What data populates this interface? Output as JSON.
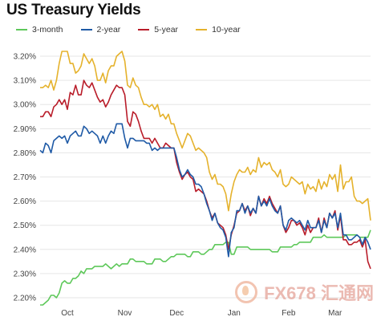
{
  "chart_data": {
    "type": "line",
    "title": "US Treasury Yields",
    "xlabel": "",
    "ylabel": "",
    "ylim": [
      2.17,
      3.26
    ],
    "yticks": [
      2.2,
      2.3,
      2.4,
      2.5,
      2.6,
      2.7,
      2.8,
      2.9,
      3.0,
      3.1,
      3.2
    ],
    "ytick_labels": [
      "2.20%",
      "2.30%",
      "2.40%",
      "2.50%",
      "2.60%",
      "2.70%",
      "2.80%",
      "2.90%",
      "3.00%",
      "3.10%",
      "3.20%"
    ],
    "month_labels": [
      "Oct",
      "Nov",
      "Dec",
      "Jan",
      "Feb",
      "Mar"
    ],
    "month_positions": [
      10,
      31,
      50,
      71,
      91,
      108
    ],
    "x_count": 122,
    "grid": true,
    "legend_position": "top",
    "series": [
      {
        "name": "3-month",
        "color": "#5ec85a",
        "values": [
          2.17,
          2.17,
          2.18,
          2.19,
          2.21,
          2.21,
          2.2,
          2.22,
          2.26,
          2.27,
          2.26,
          2.26,
          2.28,
          2.28,
          2.29,
          2.31,
          2.3,
          2.32,
          2.32,
          2.32,
          2.33,
          2.33,
          2.33,
          2.33,
          2.34,
          2.33,
          2.32,
          2.33,
          2.34,
          2.33,
          2.34,
          2.34,
          2.34,
          2.36,
          2.36,
          2.35,
          2.35,
          2.35,
          2.35,
          2.34,
          2.34,
          2.34,
          2.36,
          2.36,
          2.36,
          2.35,
          2.35,
          2.36,
          2.37,
          2.37,
          2.38,
          2.38,
          2.38,
          2.38,
          2.37,
          2.37,
          2.39,
          2.39,
          2.39,
          2.38,
          2.38,
          2.39,
          2.4,
          2.4,
          2.42,
          2.42,
          2.42,
          2.42,
          2.43,
          2.43,
          2.38,
          2.38,
          2.41,
          2.41,
          2.41,
          2.41,
          2.41,
          2.4,
          2.4,
          2.4,
          2.4,
          2.4,
          2.4,
          2.4,
          2.4,
          2.39,
          2.39,
          2.39,
          2.41,
          2.41,
          2.41,
          2.41,
          2.41,
          2.42,
          2.42,
          2.43,
          2.43,
          2.43,
          2.43,
          2.43,
          2.45,
          2.45,
          2.45,
          2.45,
          2.46,
          2.45,
          2.45,
          2.45,
          2.45,
          2.45,
          2.45,
          2.45,
          2.46,
          2.46,
          2.46,
          2.46,
          2.46,
          2.45,
          2.45,
          2.45,
          2.45,
          2.48
        ]
      },
      {
        "name": "2-year",
        "color": "#1f5aa6",
        "values": [
          2.81,
          2.8,
          2.84,
          2.83,
          2.8,
          2.85,
          2.86,
          2.87,
          2.86,
          2.87,
          2.84,
          2.87,
          2.88,
          2.89,
          2.87,
          2.87,
          2.91,
          2.9,
          2.88,
          2.89,
          2.88,
          2.87,
          2.84,
          2.87,
          2.84,
          2.87,
          2.89,
          2.88,
          2.92,
          2.92,
          2.92,
          2.86,
          2.82,
          2.86,
          2.86,
          2.85,
          2.85,
          2.85,
          2.85,
          2.84,
          2.84,
          2.81,
          2.82,
          2.81,
          2.82,
          2.82,
          2.82,
          2.82,
          2.82,
          2.82,
          2.78,
          2.73,
          2.7,
          2.71,
          2.73,
          2.71,
          2.7,
          2.67,
          2.67,
          2.66,
          2.63,
          2.59,
          2.56,
          2.52,
          2.55,
          2.51,
          2.49,
          2.48,
          2.45,
          2.37,
          2.47,
          2.49,
          2.56,
          2.56,
          2.59,
          2.55,
          2.58,
          2.55,
          2.57,
          2.55,
          2.62,
          2.58,
          2.6,
          2.58,
          2.61,
          2.58,
          2.56,
          2.55,
          2.58,
          2.5,
          2.48,
          2.52,
          2.53,
          2.52,
          2.51,
          2.52,
          2.5,
          2.48,
          2.52,
          2.49,
          2.49,
          2.49,
          2.52,
          2.47,
          2.52,
          2.49,
          2.55,
          2.53,
          2.55,
          2.49,
          2.55,
          2.46,
          2.46,
          2.44,
          2.44,
          2.45,
          2.46,
          2.45,
          2.42,
          2.45,
          2.43,
          2.4
        ]
      },
      {
        "name": "5-year",
        "color": "#b91d2a",
        "values": [
          2.95,
          2.95,
          2.97,
          2.97,
          2.95,
          2.99,
          3.0,
          3.02,
          3.0,
          3.02,
          2.98,
          3.05,
          3.04,
          3.08,
          3.04,
          3.04,
          3.1,
          3.08,
          3.07,
          3.09,
          3.06,
          3.03,
          3.01,
          3.02,
          2.99,
          3.01,
          3.04,
          3.06,
          3.08,
          3.07,
          3.07,
          3.04,
          2.93,
          2.91,
          2.97,
          2.96,
          2.93,
          2.89,
          2.86,
          2.86,
          2.86,
          2.84,
          2.86,
          2.84,
          2.82,
          2.82,
          2.84,
          2.83,
          2.82,
          2.82,
          2.76,
          2.72,
          2.69,
          2.71,
          2.72,
          2.7,
          2.69,
          2.64,
          2.65,
          2.64,
          2.63,
          2.6,
          2.56,
          2.53,
          2.55,
          2.51,
          2.5,
          2.49,
          2.46,
          2.4,
          2.46,
          2.5,
          2.55,
          2.56,
          2.59,
          2.56,
          2.58,
          2.54,
          2.57,
          2.55,
          2.62,
          2.58,
          2.61,
          2.59,
          2.62,
          2.59,
          2.57,
          2.55,
          2.58,
          2.5,
          2.47,
          2.49,
          2.52,
          2.52,
          2.5,
          2.51,
          2.49,
          2.46,
          2.5,
          2.47,
          2.49,
          2.49,
          2.53,
          2.47,
          2.53,
          2.49,
          2.55,
          2.53,
          2.56,
          2.48,
          2.54,
          2.44,
          2.44,
          2.42,
          2.42,
          2.43,
          2.43,
          2.44,
          2.41,
          2.44,
          2.35,
          2.32
        ]
      },
      {
        "name": "10-year",
        "color": "#e5b22c",
        "values": [
          3.07,
          3.07,
          3.08,
          3.07,
          3.1,
          3.06,
          3.1,
          3.17,
          3.22,
          3.22,
          3.22,
          3.17,
          3.17,
          3.13,
          3.14,
          3.16,
          3.21,
          3.19,
          3.17,
          3.19,
          3.16,
          3.1,
          3.1,
          3.13,
          3.09,
          3.14,
          3.16,
          3.16,
          3.2,
          3.21,
          3.22,
          3.18,
          3.08,
          3.07,
          3.11,
          3.08,
          3.07,
          3.03,
          3.0,
          3.0,
          2.99,
          3.0,
          2.98,
          3.0,
          2.95,
          2.96,
          2.94,
          2.96,
          2.92,
          2.92,
          2.88,
          2.85,
          2.82,
          2.85,
          2.88,
          2.87,
          2.84,
          2.81,
          2.82,
          2.81,
          2.8,
          2.78,
          2.72,
          2.69,
          2.71,
          2.67,
          2.67,
          2.66,
          2.63,
          2.56,
          2.63,
          2.68,
          2.71,
          2.73,
          2.72,
          2.72,
          2.74,
          2.71,
          2.73,
          2.72,
          2.78,
          2.74,
          2.76,
          2.75,
          2.76,
          2.73,
          2.72,
          2.7,
          2.73,
          2.67,
          2.66,
          2.67,
          2.7,
          2.69,
          2.68,
          2.67,
          2.68,
          2.63,
          2.67,
          2.65,
          2.66,
          2.64,
          2.69,
          2.65,
          2.68,
          2.66,
          2.71,
          2.69,
          2.71,
          2.64,
          2.75,
          2.65,
          2.68,
          2.68,
          2.7,
          2.62,
          2.6,
          2.6,
          2.59,
          2.6,
          2.61,
          2.52
        ]
      }
    ]
  },
  "watermark": {
    "text": "FX678 汇通网"
  }
}
